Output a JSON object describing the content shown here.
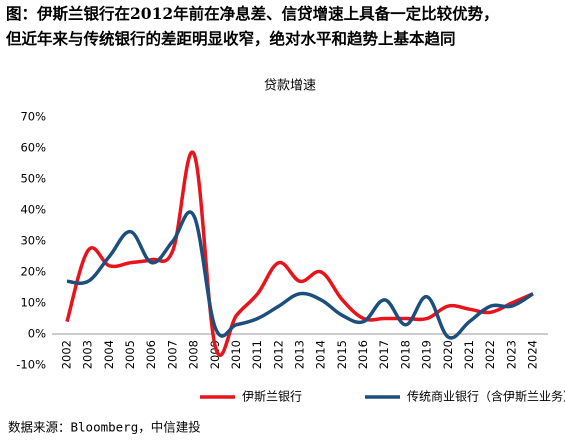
{
  "chart_data": {
    "type": "line",
    "title": [
      "图：伊斯兰银行在2012年前在净息差、信贷增速上具备一定比较优势，",
      "但近年来与传统银行的差距明显收窄，绝对水平和趋势上基本趋同"
    ],
    "subtitle": "贷款增速",
    "categories": [
      "2002",
      "2003",
      "2004",
      "2005",
      "2006",
      "2007",
      "2008",
      "2009",
      "2010",
      "2011",
      "2012",
      "2013",
      "2014",
      "2015",
      "2016",
      "2017",
      "2018",
      "2019",
      "2020",
      "2021",
      "2022",
      "2023",
      "2024"
    ],
    "series": [
      {
        "name": "伊斯兰银行",
        "color": "#e8141b",
        "values": [
          4,
          27,
          22,
          23,
          24,
          27,
          58,
          -4,
          6,
          13,
          23,
          17,
          20,
          11,
          5,
          5,
          5,
          5,
          9,
          8,
          7,
          10,
          13
        ]
      },
      {
        "name": "传统商业银行（含伊斯兰业务）",
        "color": "#1c4f7c",
        "values": [
          17,
          17,
          25,
          33,
          23,
          30,
          38,
          2,
          3,
          5,
          9,
          13,
          11,
          6,
          4,
          11,
          3,
          12,
          -1,
          4,
          9,
          9,
          13
        ]
      }
    ],
    "ylim": [
      -10,
      70
    ],
    "yticks": [
      {
        "value": -10,
        "label": "-10%"
      },
      {
        "value": 0,
        "label": "0%"
      },
      {
        "value": 10,
        "label": "10%"
      },
      {
        "value": 20,
        "label": "20%"
      },
      {
        "value": 30,
        "label": "30%"
      },
      {
        "value": 40,
        "label": "40%"
      },
      {
        "value": 50,
        "label": "50%"
      },
      {
        "value": 60,
        "label": "60%"
      },
      {
        "value": 70,
        "label": "70%"
      }
    ],
    "grid": false,
    "legend": "bottom",
    "source": "数据来源：Bloomberg，中信建投"
  }
}
